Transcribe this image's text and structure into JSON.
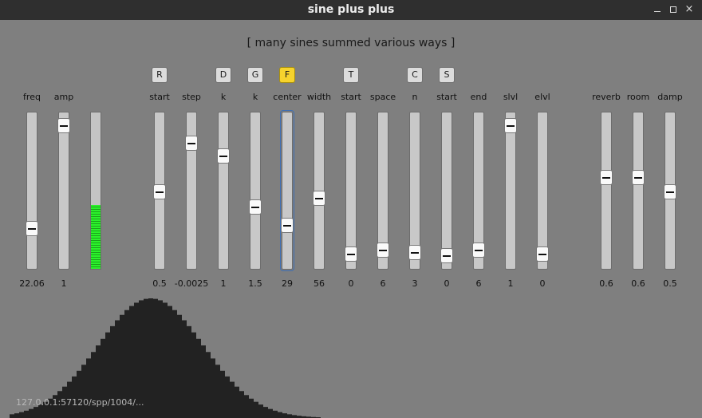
{
  "window": {
    "title": "sine plus plus",
    "controls": {
      "minimize_glyph": "",
      "maximize_glyph": "",
      "close_glyph": "×"
    }
  },
  "subtitle": "[ many sines summed various ways ]",
  "toggles": [
    {
      "label": "R",
      "active": false
    },
    {
      "label": "D",
      "active": false
    },
    {
      "label": "G",
      "active": false
    },
    {
      "label": "F",
      "active": true
    },
    {
      "label": "T",
      "active": false
    },
    {
      "label": "C",
      "active": false
    },
    {
      "label": "S",
      "active": false
    }
  ],
  "sliders": [
    {
      "name": "freq",
      "value": "22.06",
      "level": 0.24
    },
    {
      "name": "amp",
      "value": "1",
      "level": 0.96
    },
    {
      "name": "start",
      "value": "0.5",
      "level": 0.5
    },
    {
      "name": "step",
      "value": "-0.0025",
      "level": 0.84
    },
    {
      "name": "k",
      "value": "1",
      "level": 0.75
    },
    {
      "name": "k",
      "value": "1.5",
      "level": 0.39
    },
    {
      "name": "center",
      "value": "29",
      "level": 0.26,
      "focused": true
    },
    {
      "name": "width",
      "value": "56",
      "level": 0.45
    },
    {
      "name": "start",
      "value": "0",
      "level": 0.06
    },
    {
      "name": "space",
      "value": "6",
      "level": 0.09
    },
    {
      "name": "n",
      "value": "3",
      "level": 0.07
    },
    {
      "name": "start",
      "value": "0",
      "level": 0.05
    },
    {
      "name": "end",
      "value": "6",
      "level": 0.09
    },
    {
      "name": "slvl",
      "value": "1",
      "level": 0.96
    },
    {
      "name": "elvl",
      "value": "0",
      "level": 0.06
    },
    {
      "name": "reverb",
      "value": "0.6",
      "level": 0.6
    },
    {
      "name": "room",
      "value": "0.6",
      "level": 0.6
    },
    {
      "name": "damp",
      "value": "0.5",
      "level": 0.5
    }
  ],
  "meter": {
    "level": 0.41,
    "color": "#2cf22c"
  },
  "spectrum": {
    "color": "#222222",
    "peak_index": 29,
    "width": 11,
    "count": 80
  },
  "status": "127.0.0.1:57120/spp/1004/..."
}
